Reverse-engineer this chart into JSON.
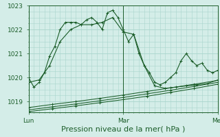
{
  "title": "",
  "xlabel": "Pression niveau de la mer( hPa )",
  "bg_color": "#d4ede8",
  "grid_color": "#a8d4cc",
  "line_color": "#1a5c28",
  "ylim": [
    1018.55,
    1023.0
  ],
  "xlim": [
    0,
    72
  ],
  "day_labels": [
    "Lun",
    "Mar",
    "Mer"
  ],
  "day_positions": [
    0,
    36,
    72
  ],
  "xlabel_fontsize": 8,
  "tick_fontsize": 6.5,
  "series": {
    "line1_x": [
      0,
      2,
      4,
      6,
      8,
      10,
      12,
      14,
      16,
      18,
      20,
      22,
      24,
      26,
      28,
      30,
      32,
      34,
      36,
      38,
      40,
      42,
      44,
      46,
      48,
      50,
      52,
      54,
      56,
      58,
      60,
      62,
      64,
      66,
      68,
      70,
      72
    ],
    "line1_y": [
      1020.0,
      1019.6,
      1019.8,
      1020.2,
      1020.9,
      1021.3,
      1022.0,
      1022.3,
      1022.3,
      1022.3,
      1022.2,
      1022.4,
      1022.5,
      1022.3,
      1022.0,
      1022.7,
      1022.8,
      1022.5,
      1022.0,
      1021.5,
      1021.8,
      1021.0,
      1020.5,
      1020.2,
      1019.8,
      1019.7,
      1019.8,
      1020.0,
      1020.2,
      1020.7,
      1021.0,
      1020.7,
      1020.5,
      1020.6,
      1020.3,
      1020.2,
      1020.3
    ],
    "line2_x": [
      0,
      4,
      8,
      12,
      16,
      20,
      24,
      28,
      32,
      36,
      40,
      44,
      48,
      52,
      56,
      60,
      64,
      68,
      72
    ],
    "line2_y": [
      1019.8,
      1019.9,
      1020.5,
      1021.5,
      1022.0,
      1022.2,
      1022.2,
      1022.3,
      1022.5,
      1021.9,
      1021.8,
      1020.5,
      1019.65,
      1019.55,
      1019.6,
      1019.65,
      1019.7,
      1019.75,
      1019.9
    ],
    "line3_x": [
      0,
      9,
      18,
      27,
      36,
      45,
      54,
      63,
      72
    ],
    "line3_y": [
      1018.75,
      1018.88,
      1019.0,
      1019.13,
      1019.27,
      1019.42,
      1019.57,
      1019.72,
      1019.88
    ],
    "line4_x": [
      0,
      9,
      18,
      27,
      36,
      45,
      54,
      63,
      72
    ],
    "line4_y": [
      1018.65,
      1018.78,
      1018.9,
      1019.03,
      1019.17,
      1019.32,
      1019.47,
      1019.63,
      1019.8
    ],
    "line5_x": [
      0,
      9,
      18,
      27,
      36,
      45,
      54,
      63,
      72
    ],
    "line5_y": [
      1018.58,
      1018.7,
      1018.82,
      1018.95,
      1019.08,
      1019.22,
      1019.38,
      1019.54,
      1019.72
    ]
  }
}
